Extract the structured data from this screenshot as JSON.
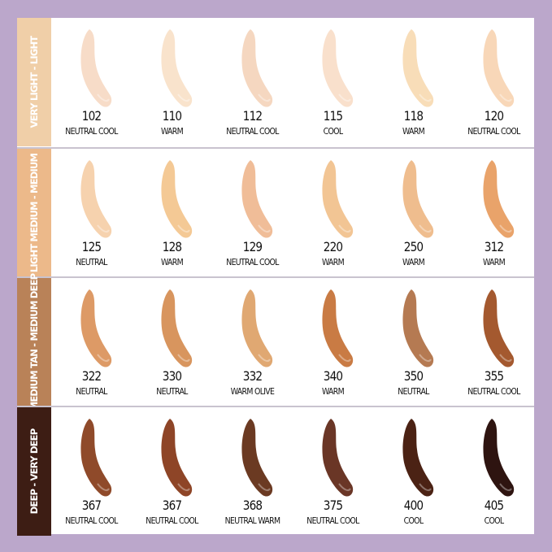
{
  "rows": [
    {
      "label": "VERY LIGHT - LIGHT",
      "band_color": "#f0cfa8",
      "shades": [
        {
          "number": "102",
          "tone": "NEUTRAL COOL",
          "color": "#f7dcc8"
        },
        {
          "number": "110",
          "tone": "WARM",
          "color": "#f9e3cc"
        },
        {
          "number": "112",
          "tone": "NEUTRAL COOL",
          "color": "#f5d7c0"
        },
        {
          "number": "115",
          "tone": "COOL",
          "color": "#f9e0cc"
        },
        {
          "number": "118",
          "tone": "WARM",
          "color": "#f8ddb8"
        },
        {
          "number": "120",
          "tone": "NEUTRAL COOL",
          "color": "#f8d7b8"
        }
      ]
    },
    {
      "label": "LIGHT MEDIUM - MEDIUM",
      "band_color": "#ecb98a",
      "shades": [
        {
          "number": "125",
          "tone": "NEUTRAL",
          "color": "#f6d2ae"
        },
        {
          "number": "128",
          "tone": "WARM",
          "color": "#f4c995"
        },
        {
          "number": "129",
          "tone": "NEUTRAL COOL",
          "color": "#f0bd98"
        },
        {
          "number": "220",
          "tone": "WARM",
          "color": "#f2c594"
        },
        {
          "number": "250",
          "tone": "WARM",
          "color": "#efbd8e"
        },
        {
          "number": "312",
          "tone": "WARM",
          "color": "#e9a36a"
        }
      ]
    },
    {
      "label": "MEDIUM TAN - MEDIUM DEEP",
      "band_color": "#b98258",
      "shades": [
        {
          "number": "322",
          "tone": "NEUTRAL",
          "color": "#dd9a66"
        },
        {
          "number": "330",
          "tone": "NEUTRAL",
          "color": "#d8955e"
        },
        {
          "number": "332",
          "tone": "WARM OLIVE",
          "color": "#e0a872"
        },
        {
          "number": "340",
          "tone": "WARM",
          "color": "#c97b44"
        },
        {
          "number": "350",
          "tone": "NEUTRAL",
          "color": "#b57a52"
        },
        {
          "number": "355",
          "tone": "NEUTRAL COOL",
          "color": "#a4592f"
        }
      ]
    },
    {
      "label": "DEEP - VERY DEEP",
      "band_color": "#3d1d14",
      "shades": [
        {
          "number": "367",
          "tone": "NEUTRAL COOL",
          "color": "#8f4a2a"
        },
        {
          "number": "367",
          "tone": "NEUTRAL COOL",
          "color": "#8e4527"
        },
        {
          "number": "368",
          "tone": "NEUTRAL WARM",
          "color": "#6b3a22"
        },
        {
          "number": "375",
          "tone": "NEUTRAL COOL",
          "color": "#6a3626"
        },
        {
          "number": "400",
          "tone": "COOL",
          "color": "#4b2214"
        },
        {
          "number": "405",
          "tone": "COOL",
          "color": "#2e1410"
        }
      ]
    }
  ]
}
